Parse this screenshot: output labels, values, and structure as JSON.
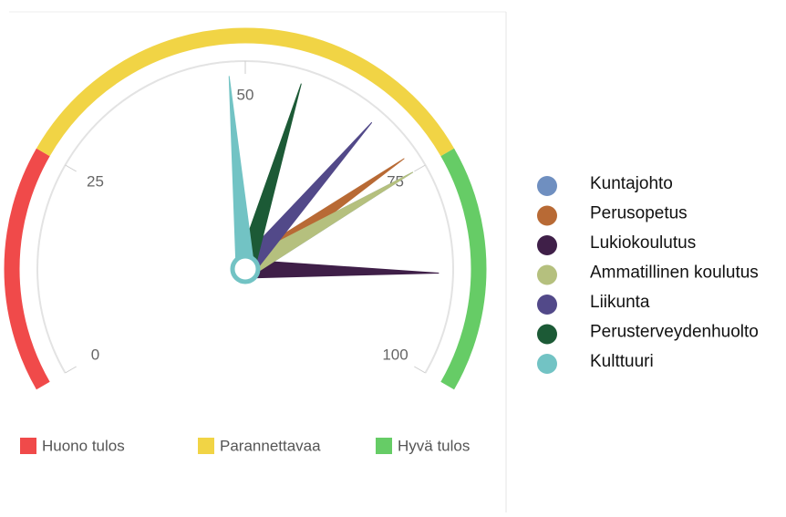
{
  "chart_data": {
    "type": "gauge",
    "ylim": [
      0,
      100
    ],
    "yticks": [
      0,
      25,
      50,
      75,
      100
    ],
    "bands": [
      {
        "name": "Huono tulos",
        "color": "#f04a4a",
        "from": 0,
        "to": 25
      },
      {
        "name": "Parannettavaa",
        "color": "#f1d445",
        "from": 25,
        "to": 75
      },
      {
        "name": "Hyvä tulos",
        "color": "#66cc66",
        "from": 75,
        "to": 100
      }
    ],
    "series": [
      {
        "name": "Kuntajohto",
        "color": "#6f8fc0",
        "value": 75
      },
      {
        "name": "Perusopetus",
        "color": "#b86a35",
        "value": 73
      },
      {
        "name": "Lukiokoulutus",
        "color": "#3f1f48",
        "value": 88
      },
      {
        "name": "Ammatillinen koulutus",
        "color": "#b5c07e",
        "value": 75
      },
      {
        "name": "Liikunta",
        "color": "#524989",
        "value": 67
      },
      {
        "name": "Perusterveydenhuolto",
        "color": "#1c5a36",
        "value": 57
      },
      {
        "name": "Kulttuuri",
        "color": "#72c3c4",
        "value": 48
      }
    ]
  }
}
